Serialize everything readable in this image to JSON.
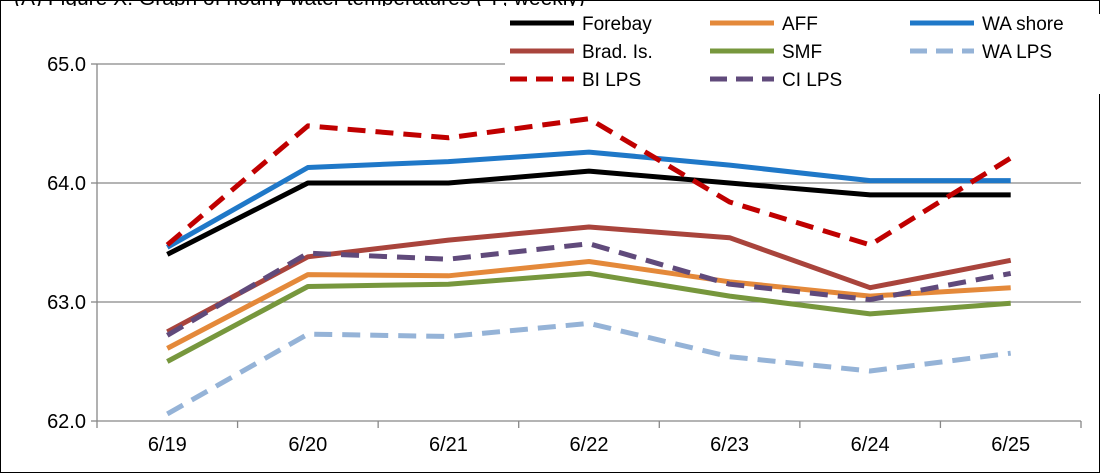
{
  "chart_data": {
    "type": "line",
    "title": "(A) Figure X. Graph of hourly water temperatures (°F, weekly)",
    "xlabel": "",
    "ylabel": "",
    "categories": [
      "6/19",
      "6/20",
      "6/21",
      "6/22",
      "6/23",
      "6/24",
      "6/25"
    ],
    "ylim": [
      62.0,
      65.0
    ],
    "yticks": [
      "62.0",
      "63.0",
      "64.0",
      "65.0"
    ],
    "grid": "horizontal",
    "legend_position": "top-right",
    "series": [
      {
        "name": "Forebay",
        "color": "#000000",
        "dash": "solid",
        "values": [
          63.4,
          64.0,
          64.0,
          64.1,
          64.0,
          63.9,
          63.9
        ]
      },
      {
        "name": "AFF",
        "color": "#E4893A",
        "dash": "solid",
        "values": [
          62.61,
          63.23,
          63.22,
          63.34,
          63.17,
          63.05,
          63.12
        ]
      },
      {
        "name": "WA shore",
        "color": "#1F78C8",
        "dash": "solid",
        "values": [
          63.46,
          64.13,
          64.18,
          64.26,
          64.15,
          64.02,
          64.02
        ]
      },
      {
        "name": "Brad. Is.",
        "color": "#A9443C",
        "dash": "solid",
        "values": [
          62.75,
          63.38,
          63.52,
          63.63,
          63.54,
          63.12,
          63.35
        ]
      },
      {
        "name": "SMF",
        "color": "#77973D",
        "dash": "solid",
        "values": [
          62.5,
          63.13,
          63.15,
          63.24,
          63.05,
          62.9,
          62.99
        ]
      },
      {
        "name": "WA LPS",
        "color": "#95B3D7",
        "dash": "dashed",
        "values": [
          62.06,
          62.73,
          62.71,
          62.82,
          62.54,
          62.42,
          62.57
        ]
      },
      {
        "name": "BI LPS",
        "color": "#C00000",
        "dash": "dashed",
        "values": [
          63.48,
          64.48,
          64.38,
          64.54,
          63.84,
          63.48,
          64.21
        ]
      },
      {
        "name": "CI LPS",
        "color": "#604A7B",
        "dash": "dashed",
        "values": [
          62.72,
          63.41,
          63.36,
          63.49,
          63.15,
          63.02,
          63.24
        ]
      }
    ]
  }
}
